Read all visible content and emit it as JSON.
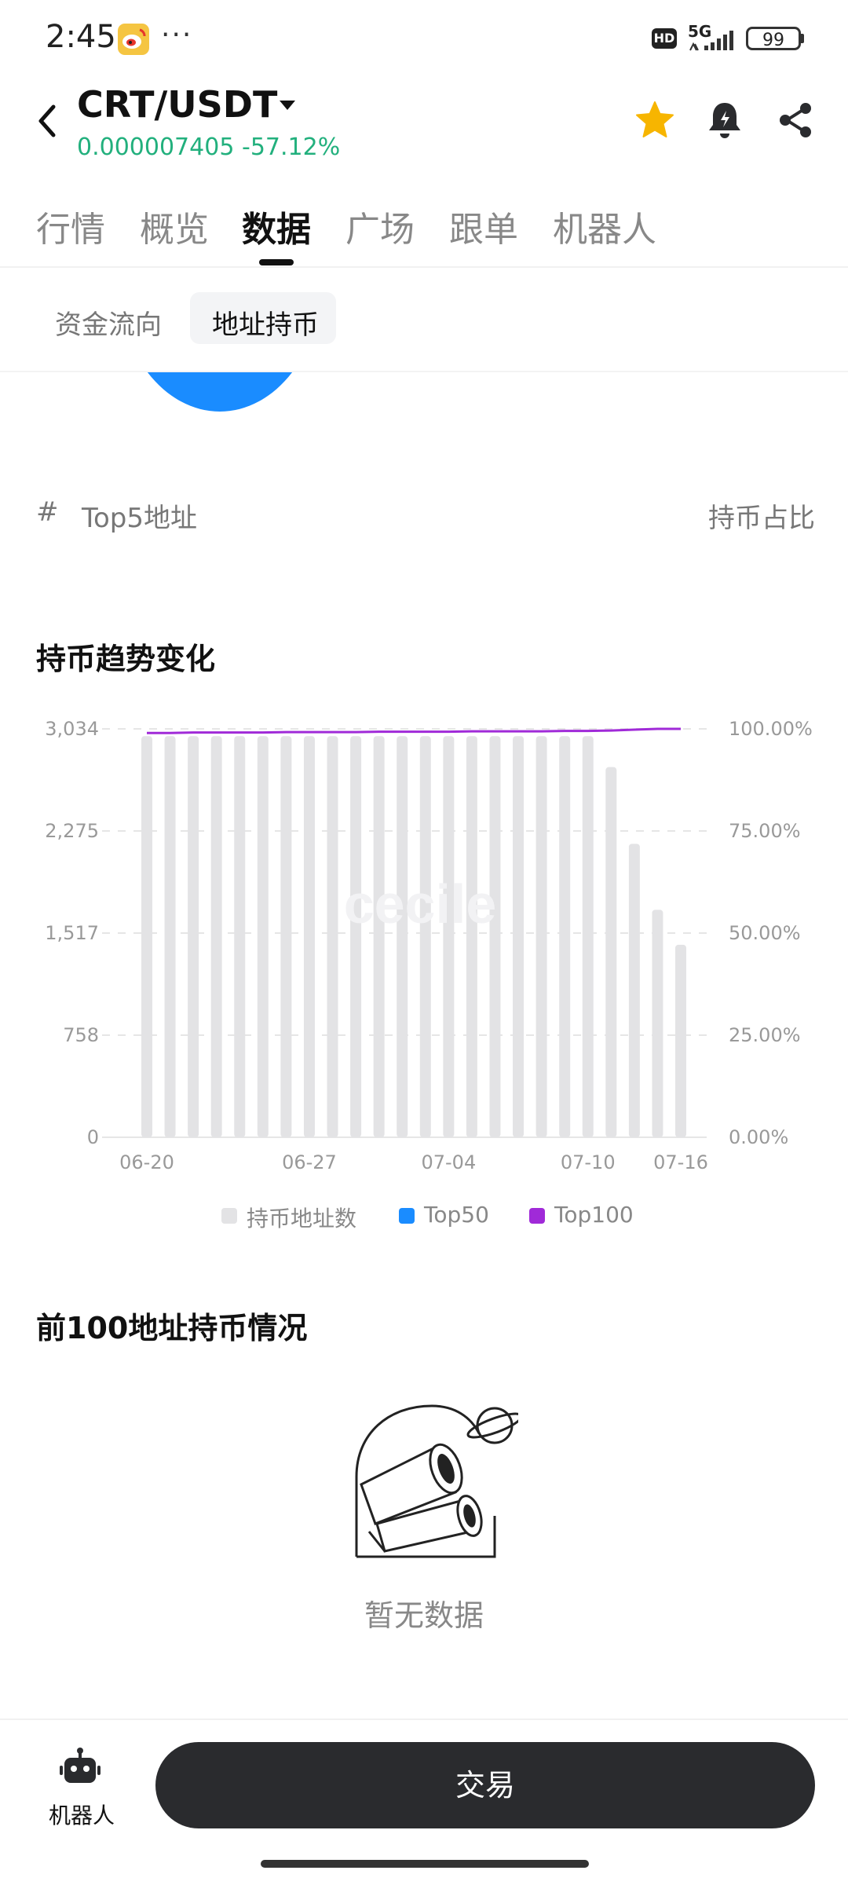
{
  "status_bar": {
    "time": "2:45",
    "more": "···",
    "hd": "HD",
    "network": "5G",
    "battery": "99"
  },
  "header": {
    "pair": "CRT/USDT",
    "price": "0.000007405",
    "change": "-57.12%",
    "price_color": "#22b07d"
  },
  "tabs": [
    {
      "label": "行情",
      "active": false
    },
    {
      "label": "概览",
      "active": false
    },
    {
      "label": "数据",
      "active": true
    },
    {
      "label": "广场",
      "active": false
    },
    {
      "label": "跟单",
      "active": false
    },
    {
      "label": "机器人",
      "active": false
    }
  ],
  "subtabs": [
    {
      "label": "资金流向",
      "active": false
    },
    {
      "label": "地址持币",
      "active": true
    }
  ],
  "top5_table": {
    "hash": "#",
    "address_header": "Top5地址",
    "share_header": "持币占比"
  },
  "trend": {
    "title": "持币趋势变化",
    "legend": [
      {
        "label": "持币地址数",
        "color": "#e3e3e5"
      },
      {
        "label": "Top50",
        "color": "#1a8cff"
      },
      {
        "label": "Top100",
        "color": "#a02ad8"
      }
    ]
  },
  "chart_data": {
    "type": "bar",
    "x_tick_labels": [
      "06-20",
      "06-27",
      "07-04",
      "07-10",
      "07-16"
    ],
    "y_left_ticks": [
      "0",
      "758",
      "1,517",
      "2,275",
      "3,034"
    ],
    "y_right_ticks": [
      "0.00%",
      "25.00%",
      "50.00%",
      "75.00%",
      "100.00%"
    ],
    "y_left_range": [
      0,
      3034
    ],
    "y_right_range": [
      0,
      100
    ],
    "grid": true,
    "legend_position": "bottom",
    "series": [
      {
        "name": "持币地址数",
        "kind": "bar",
        "axis": "left",
        "values": [
          2980,
          2980,
          2980,
          2980,
          2980,
          2980,
          2980,
          2980,
          2980,
          2980,
          2980,
          2980,
          2980,
          2980,
          2980,
          2980,
          2980,
          2980,
          2980,
          2980,
          2750,
          2180,
          1690,
          1430
        ]
      },
      {
        "name": "Top100",
        "kind": "line",
        "axis": "right",
        "values": [
          99.0,
          99.0,
          99.1,
          99.1,
          99.1,
          99.1,
          99.2,
          99.2,
          99.2,
          99.2,
          99.3,
          99.3,
          99.3,
          99.3,
          99.4,
          99.4,
          99.4,
          99.4,
          99.5,
          99.5,
          99.6,
          99.8,
          100.0,
          100.0
        ]
      },
      {
        "name": "Top50",
        "kind": "line",
        "axis": "right",
        "values": []
      }
    ],
    "watermark": "cecile"
  },
  "top100": {
    "title": "前100地址持币情况",
    "empty_text": "暂无数据"
  },
  "bottom_bar": {
    "robot_label": "机器人",
    "trade_label": "交易"
  }
}
